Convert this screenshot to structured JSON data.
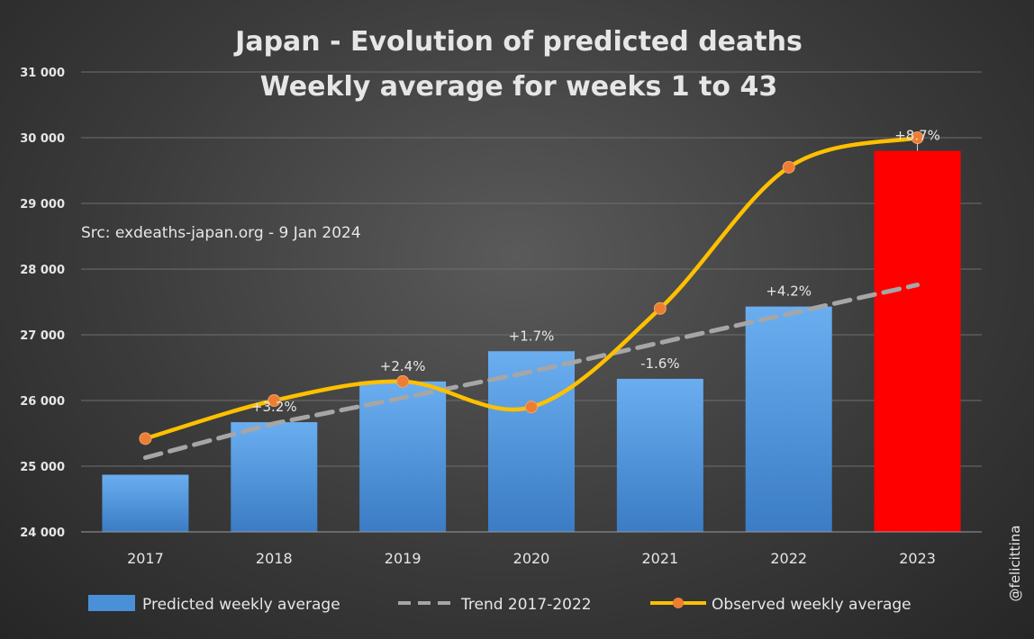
{
  "credit": "@felicittina",
  "chart_data": {
    "type": "bar",
    "title_lines": [
      "Japan - Evolution of predicted deaths",
      "Weekly average for weeks 1 to 43"
    ],
    "source": "Src: exdeaths-japan.org - 9 Jan 2024",
    "categories": [
      "2017",
      "2018",
      "2019",
      "2020",
      "2021",
      "2022",
      "2023"
    ],
    "ylim": [
      24000,
      31000
    ],
    "yticks": [
      24000,
      25000,
      26000,
      27000,
      28000,
      29000,
      30000,
      31000
    ],
    "ytick_labels": [
      "24 000",
      "25 000",
      "26 000",
      "27 000",
      "28 000",
      "29 000",
      "30 000",
      "31 000"
    ],
    "grid": true,
    "legend_position": "bottom",
    "series": [
      {
        "name": "Predicted weekly average",
        "kind": "bar",
        "values": [
          24870,
          25670,
          26290,
          26750,
          26330,
          27430,
          29800
        ],
        "color": "#4a90d9",
        "highlight": {
          "index": 6,
          "color": "#ff0000"
        }
      },
      {
        "name": "Trend 2017-2022",
        "kind": "line",
        "style": "dashed",
        "values": [
          25130,
          25650,
          26040,
          26440,
          26880,
          27320,
          27760
        ],
        "color": "#a6a6a6"
      },
      {
        "name": "Observed weekly average",
        "kind": "line",
        "style": "smooth",
        "values": [
          25420,
          26000,
          26290,
          25900,
          27400,
          29550,
          30000
        ],
        "color": "#ffc000",
        "marker_color": "#ed7d31"
      }
    ],
    "data_labels": [
      "",
      "+3.2%",
      "+2.4%",
      "+1.7%",
      "-1.6%",
      "+4.2%",
      "+8.7%"
    ]
  }
}
